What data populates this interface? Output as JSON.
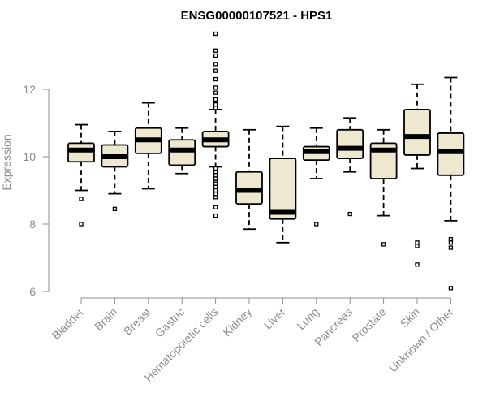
{
  "chart_data": {
    "type": "boxplot",
    "title": "ENSG00000107521 - HPS1",
    "xlabel": "",
    "ylabel": "Expression",
    "ylim": [
      6,
      14
    ],
    "yticks": [
      6,
      8,
      10,
      12
    ],
    "grid": false,
    "colors": {
      "box_fill": "#efe8d0",
      "axis": "#8c8c8c",
      "title": "#000000"
    },
    "categories": [
      "Bladder",
      "Brain",
      "Breast",
      "Gastric",
      "Hematopoietic cells",
      "Kidney",
      "Liver",
      "Lung",
      "Pancreas",
      "Prostate",
      "Skin",
      "Unknown / Other"
    ],
    "boxes": [
      {
        "category": "Bladder",
        "whisker_low": 9.0,
        "q1": 9.85,
        "median": 10.2,
        "q3": 10.4,
        "whisker_high": 10.95,
        "outliers": [
          8.75,
          8.0
        ]
      },
      {
        "category": "Brain",
        "whisker_low": 8.9,
        "q1": 9.7,
        "median": 10.0,
        "q3": 10.35,
        "whisker_high": 10.75,
        "outliers": [
          8.45
        ]
      },
      {
        "category": "Breast",
        "whisker_low": 9.05,
        "q1": 10.1,
        "median": 10.5,
        "q3": 10.85,
        "whisker_high": 11.6,
        "outliers": []
      },
      {
        "category": "Gastric",
        "whisker_low": 9.5,
        "q1": 9.75,
        "median": 10.2,
        "q3": 10.5,
        "whisker_high": 10.85,
        "outliers": []
      },
      {
        "category": "Hematopoietic cells",
        "whisker_low": 9.7,
        "q1": 10.3,
        "median": 10.5,
        "q3": 10.75,
        "whisker_high": 11.4,
        "outliers": [
          13.65,
          13.15,
          13.0,
          12.75,
          12.55,
          12.3,
          12.05,
          11.9,
          11.7,
          11.55,
          11.45,
          9.65,
          9.55,
          9.45,
          9.35,
          9.25,
          9.2,
          9.1,
          9.0,
          8.9,
          8.8,
          8.5,
          8.25
        ]
      },
      {
        "category": "Kidney",
        "whisker_low": 7.85,
        "q1": 8.6,
        "median": 9.0,
        "q3": 9.55,
        "whisker_high": 10.8,
        "outliers": []
      },
      {
        "category": "Liver",
        "whisker_low": 7.45,
        "q1": 8.15,
        "median": 8.35,
        "q3": 9.95,
        "whisker_high": 10.9,
        "outliers": []
      },
      {
        "category": "Lung",
        "whisker_low": 9.35,
        "q1": 9.9,
        "median": 10.15,
        "q3": 10.3,
        "whisker_high": 10.85,
        "outliers": [
          8.0
        ]
      },
      {
        "category": "Pancreas",
        "whisker_low": 9.55,
        "q1": 9.95,
        "median": 10.25,
        "q3": 10.8,
        "whisker_high": 11.15,
        "outliers": [
          8.3
        ]
      },
      {
        "category": "Prostate",
        "whisker_low": 8.25,
        "q1": 9.35,
        "median": 10.2,
        "q3": 10.4,
        "whisker_high": 10.8,
        "outliers": [
          7.4
        ]
      },
      {
        "category": "Skin",
        "whisker_low": 9.65,
        "q1": 10.05,
        "median": 10.6,
        "q3": 11.4,
        "whisker_high": 12.15,
        "outliers": [
          7.45,
          7.35,
          6.8
        ]
      },
      {
        "category": "Unknown / Other",
        "whisker_low": 8.1,
        "q1": 9.45,
        "median": 10.15,
        "q3": 10.7,
        "whisker_high": 12.35,
        "outliers": [
          7.55,
          7.45,
          7.3,
          6.1
        ]
      }
    ]
  }
}
